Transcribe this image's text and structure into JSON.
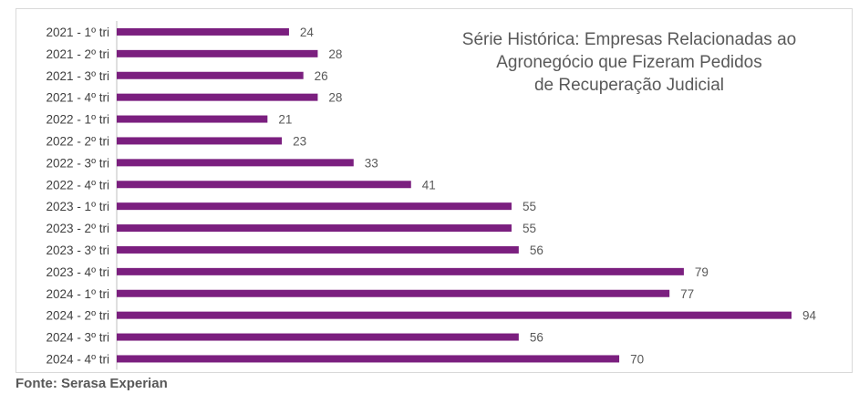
{
  "chart_data": {
    "type": "bar",
    "orientation": "horizontal",
    "title_lines": [
      "Série Histórica: Empresas Relacionadas ao",
      "Agronegócio que Fizeram Pedidos",
      "de Recuperação Judicial"
    ],
    "categories": [
      "2021 - 1º tri",
      "2021 - 2º tri",
      "2021 - 3º tri",
      "2021 - 4º tri",
      "2022 - 1º tri",
      "2022 - 2º tri",
      "2022 - 3º tri",
      "2022 - 4º tri",
      "2023 - 1º tri",
      "2023 - 2º tri",
      "2023 - 3º tri",
      "2023 - 4º tri",
      "2024 - 1º tri",
      "2024 - 2º tri",
      "2024 - 3º tri",
      "2024 - 4º tri"
    ],
    "values": [
      24,
      28,
      26,
      28,
      21,
      23,
      33,
      41,
      55,
      55,
      56,
      79,
      77,
      94,
      56,
      70
    ],
    "xlim": [
      0,
      94
    ],
    "grid": false,
    "legend": "none",
    "colors": {
      "bar": "#7b1f7f"
    }
  },
  "source": "Fonte: Serasa Experian"
}
